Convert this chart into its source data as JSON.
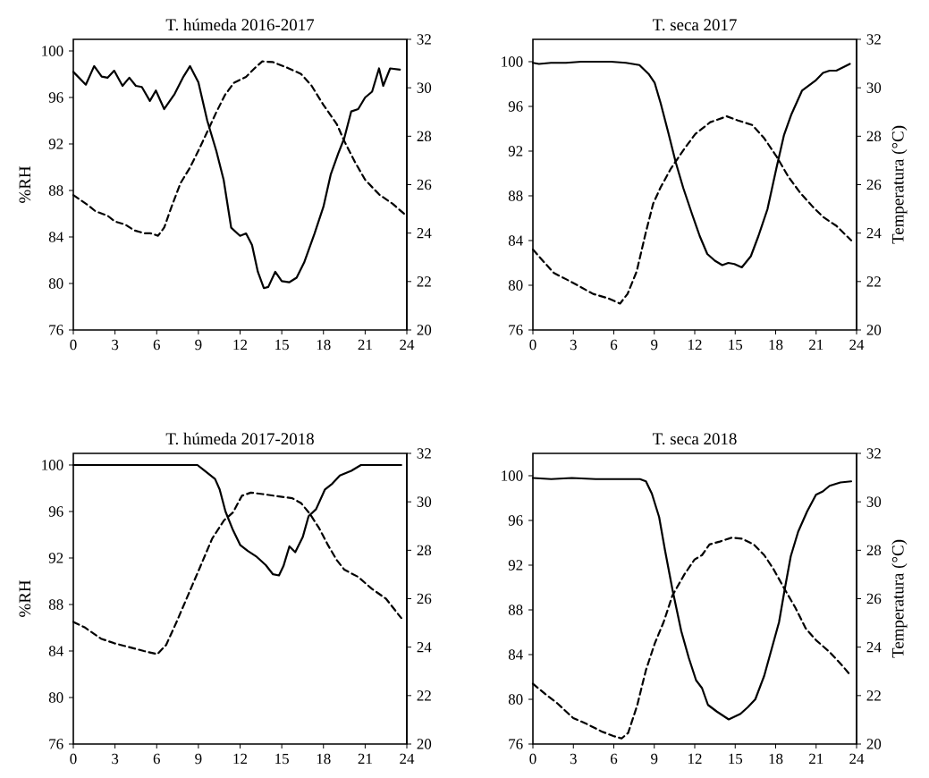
{
  "chart_data": [
    {
      "type": "line",
      "title": "T. húmeda 2016-2017",
      "ylabel": "%RH",
      "xlim": [
        0,
        24
      ],
      "xticks": [
        0,
        3,
        6,
        9,
        12,
        15,
        18,
        21,
        24
      ],
      "ylim": [
        76,
        101
      ],
      "yticks": [
        76,
        80,
        84,
        88,
        92,
        96,
        100
      ],
      "y2lim": [
        20,
        32
      ],
      "y2ticks": [
        20,
        22,
        24,
        26,
        28,
        30,
        32
      ],
      "series": [
        {
          "color": "#000000",
          "line_style": "solid",
          "x": [
            0,
            0.9,
            1.5,
            2.04,
            2.46,
            2.94,
            3.54,
            4.03,
            4.5,
            4.93,
            5.51,
            5.94,
            6.54,
            7.29,
            7.93,
            8.4,
            9.0,
            9.64,
            10.29,
            10.82,
            11.36,
            12.0,
            12.43,
            12.86,
            13.28,
            13.71,
            14.03,
            14.53,
            15.0,
            15.53,
            16.07,
            16.61,
            17.36,
            18.0,
            18.53,
            19.07,
            19.5,
            20.0,
            20.5,
            21.0,
            21.5,
            22.0,
            22.3,
            22.8,
            23.5
          ],
          "values": [
            98.2,
            97.1,
            98.7,
            97.8,
            97.7,
            98.3,
            97.0,
            97.7,
            97.0,
            96.9,
            95.7,
            96.6,
            95.0,
            96.3,
            97.8,
            98.7,
            97.3,
            94.0,
            91.4,
            88.9,
            84.8,
            84.1,
            84.3,
            83.3,
            81.0,
            79.6,
            79.7,
            81.0,
            80.2,
            80.1,
            80.5,
            81.8,
            84.3,
            86.6,
            89.4,
            91.2,
            92.5,
            94.8,
            95.0,
            96.0,
            96.5,
            98.5,
            97.0,
            98.5,
            98.4
          ]
        },
        {
          "color": "#000000",
          "line_style": "dashed",
          "axis": "y2",
          "x": [
            0,
            1.07,
            1.6,
            2.46,
            3.0,
            3.75,
            4.39,
            5.14,
            5.57,
            6.1,
            6.54,
            7.07,
            7.71,
            8.36,
            9.0,
            9.75,
            10.29,
            10.93,
            11.57,
            12.43,
            13.07,
            13.6,
            14.36,
            15.43,
            16.39,
            17.14,
            18.0,
            18.96,
            19.5,
            20.3,
            21.0,
            22.0,
            23.0,
            23.8
          ],
          "values": [
            25.57,
            25.15,
            24.9,
            24.72,
            24.48,
            24.35,
            24.11,
            23.99,
            23.99,
            23.89,
            24.23,
            25.09,
            26.06,
            26.67,
            27.4,
            28.32,
            28.99,
            29.72,
            30.21,
            30.45,
            30.82,
            31.09,
            31.06,
            30.82,
            30.57,
            30.09,
            29.29,
            28.5,
            27.8,
            26.9,
            26.2,
            25.6,
            25.2,
            24.8
          ]
        }
      ]
    },
    {
      "type": "line",
      "title": "T. seca 2017",
      "y2label": "Temperatura (°C)",
      "xlim": [
        0,
        24
      ],
      "xticks": [
        0,
        3,
        6,
        9,
        12,
        15,
        18,
        21,
        24
      ],
      "ylim": [
        76,
        102
      ],
      "yticks": [
        76,
        80,
        84,
        88,
        92,
        96,
        100
      ],
      "y2lim": [
        20,
        32
      ],
      "y2ticks": [
        20,
        22,
        24,
        26,
        28,
        30,
        32
      ],
      "series": [
        {
          "color": "#000000",
          "line_style": "solid",
          "x": [
            0,
            0.45,
            1.34,
            2.45,
            3.57,
            5.8,
            6.9,
            7.9,
            8.58,
            9.03,
            9.47,
            10.03,
            10.59,
            11.15,
            11.82,
            12.37,
            12.93,
            13.49,
            14.04,
            14.49,
            14.94,
            15.49,
            16.16,
            16.72,
            17.39,
            18.06,
            18.61,
            19.17,
            19.95,
            20.95,
            21.51,
            22.0,
            22.5,
            23.5
          ],
          "values": [
            99.9,
            99.8,
            99.9,
            99.9,
            100.0,
            100.0,
            99.9,
            99.7,
            98.9,
            98.1,
            96.3,
            93.7,
            91.0,
            88.7,
            86.3,
            84.4,
            82.8,
            82.2,
            81.8,
            82.0,
            81.9,
            81.6,
            82.6,
            84.4,
            86.8,
            90.5,
            93.4,
            95.3,
            97.4,
            98.3,
            99.0,
            99.2,
            99.2,
            99.8
          ]
        },
        {
          "color": "#000000",
          "line_style": "dashed",
          "axis": "y2",
          "x": [
            0,
            0.67,
            1.56,
            2.45,
            3.46,
            4.46,
            5.57,
            6.46,
            7.02,
            7.69,
            8.36,
            8.92,
            9.47,
            10.25,
            11.15,
            12.04,
            13.15,
            14.38,
            15.16,
            16.27,
            17.16,
            18.06,
            18.95,
            19.84,
            20.73,
            21.51,
            22.5,
            23.6
          ],
          "values": [
            23.32,
            22.9,
            22.35,
            22.1,
            21.8,
            21.49,
            21.31,
            21.09,
            21.49,
            22.41,
            24.0,
            25.22,
            25.89,
            26.68,
            27.42,
            28.09,
            28.58,
            28.82,
            28.66,
            28.46,
            27.91,
            27.17,
            26.32,
            25.65,
            25.1,
            24.67,
            24.3,
            23.7
          ]
        }
      ]
    },
    {
      "type": "line",
      "title": "T. húmeda 2017-2018",
      "ylabel": "%RH",
      "xlim": [
        0,
        24
      ],
      "xticks": [
        0,
        3,
        6,
        9,
        12,
        15,
        18,
        21,
        24
      ],
      "ylim": [
        76,
        101
      ],
      "yticks": [
        76,
        80,
        84,
        88,
        92,
        96,
        100
      ],
      "y2lim": [
        20,
        32
      ],
      "y2ticks": [
        20,
        22,
        24,
        26,
        28,
        30,
        32
      ],
      "series": [
        {
          "color": "#000000",
          "line_style": "solid",
          "x": [
            0,
            8.93,
            9.35,
            10.2,
            10.53,
            10.95,
            11.49,
            12.02,
            12.56,
            13.2,
            13.84,
            14.37,
            14.8,
            15.12,
            15.55,
            15.97,
            16.51,
            16.93,
            17.47,
            18.11,
            18.64,
            19.18,
            20.0,
            20.7,
            23.6
          ],
          "values": [
            100.0,
            100.0,
            99.6,
            98.8,
            97.9,
            96.0,
            94.4,
            93.1,
            92.6,
            92.1,
            91.4,
            90.6,
            90.5,
            91.3,
            93.0,
            92.5,
            93.8,
            95.6,
            96.2,
            97.9,
            98.4,
            99.1,
            99.5,
            100.0,
            100.0
          ]
        },
        {
          "color": "#000000",
          "line_style": "dashed",
          "axis": "y2",
          "x": [
            0,
            0.81,
            1.99,
            2.95,
            4.01,
            5.08,
            6.04,
            6.68,
            7.43,
            8.29,
            9.14,
            9.99,
            10.85,
            11.49,
            12.13,
            12.77,
            13.62,
            14.69,
            15.76,
            16.4,
            17.04,
            17.68,
            18.32,
            18.96,
            19.5,
            20.5,
            21.5,
            22.5,
            23.6
          ],
          "values": [
            25.04,
            24.82,
            24.35,
            24.16,
            24.0,
            23.84,
            23.71,
            24.09,
            25.04,
            26.19,
            27.33,
            28.48,
            29.24,
            29.56,
            30.25,
            30.38,
            30.32,
            30.23,
            30.15,
            29.94,
            29.49,
            28.92,
            28.22,
            27.59,
            27.2,
            26.9,
            26.4,
            26.0,
            25.2
          ]
        }
      ]
    },
    {
      "type": "line",
      "title": "T. seca 2018",
      "y2label": "Temperatura (°C)",
      "xlim": [
        0,
        24
      ],
      "xticks": [
        0,
        3,
        6,
        9,
        12,
        15,
        18,
        21,
        24
      ],
      "ylim": [
        76,
        102
      ],
      "yticks": [
        76,
        80,
        84,
        88,
        92,
        96,
        100
      ],
      "y2lim": [
        20,
        32
      ],
      "y2ticks": [
        20,
        22,
        24,
        26,
        28,
        30,
        32
      ],
      "series": [
        {
          "color": "#000000",
          "line_style": "solid",
          "x": [
            0,
            1.36,
            2.89,
            4.65,
            6.18,
            7.94,
            8.38,
            8.82,
            9.36,
            9.8,
            10.35,
            11.0,
            11.56,
            12.1,
            12.54,
            12.98,
            13.64,
            14.52,
            15.39,
            15.94,
            16.49,
            17.15,
            17.7,
            18.25,
            18.68,
            19.12,
            19.67,
            20.33,
            20.99,
            21.5,
            22.0,
            22.8,
            23.6
          ],
          "values": [
            99.8,
            99.7,
            99.8,
            99.7,
            99.7,
            99.7,
            99.5,
            98.4,
            96.3,
            93.3,
            89.8,
            86.1,
            83.7,
            81.7,
            81.0,
            79.5,
            78.9,
            78.2,
            78.7,
            79.3,
            80.0,
            82.1,
            84.5,
            86.9,
            89.9,
            92.8,
            95.0,
            96.8,
            98.3,
            98.6,
            99.1,
            99.4,
            99.5
          ]
        },
        {
          "color": "#000000",
          "line_style": "dashed",
          "axis": "y2",
          "x": [
            0,
            0.92,
            1.79,
            2.99,
            3.99,
            5.09,
            5.96,
            6.58,
            7.06,
            7.72,
            8.38,
            9.04,
            9.69,
            10.35,
            11.23,
            11.99,
            12.54,
            13.09,
            13.86,
            14.74,
            15.5,
            16.38,
            17.15,
            17.81,
            18.68,
            19.45,
            20.22,
            20.99,
            22.0,
            23.0,
            23.6
          ],
          "values": [
            22.49,
            22.06,
            21.69,
            21.07,
            20.83,
            20.52,
            20.33,
            20.23,
            20.46,
            21.57,
            23.05,
            24.16,
            25.03,
            26.14,
            27.0,
            27.62,
            27.8,
            28.24,
            28.36,
            28.52,
            28.48,
            28.24,
            27.8,
            27.25,
            26.38,
            25.64,
            24.78,
            24.29,
            23.8,
            23.2,
            22.8
          ]
        }
      ]
    }
  ]
}
